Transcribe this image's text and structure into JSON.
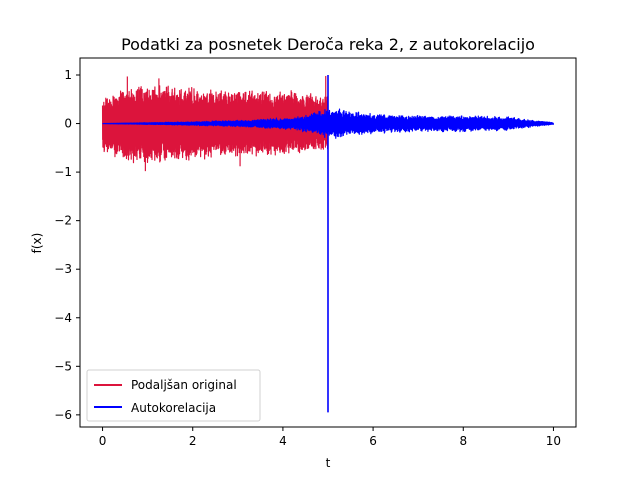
{
  "chart_data": {
    "type": "line",
    "title": "Podatki za posnetek Deroča reka 2, z autokorelacijo",
    "xlabel": "t",
    "ylabel": "f(x)",
    "xlim": [
      -0.5,
      10.5
    ],
    "ylim": [
      -6.25,
      1.35
    ],
    "xticks": [
      0,
      2,
      4,
      6,
      8,
      10
    ],
    "xtick_labels": [
      "0",
      "2",
      "4",
      "6",
      "8",
      "10"
    ],
    "yticks": [
      1,
      0,
      -1,
      -2,
      -3,
      -4,
      -5,
      -6
    ],
    "ytick_labels": [
      "1",
      "0",
      "−1",
      "−2",
      "−3",
      "−4",
      "−5",
      "−6"
    ],
    "grid": false,
    "legend_position": "lower-left",
    "series": [
      {
        "name": "Podaljšan original",
        "color": "#dc143c",
        "description_x_range": [
          0,
          5
        ],
        "envelope": {
          "x": [
            0,
            0.5,
            1,
            1.5,
            2,
            2.5,
            3,
            3.5,
            4,
            4.5,
            5
          ],
          "upper": [
            0.5,
            0.75,
            0.8,
            0.78,
            0.75,
            0.72,
            0.75,
            0.72,
            0.7,
            0.68,
            0.6
          ],
          "lower": [
            -0.6,
            -0.8,
            -0.85,
            -0.8,
            -0.78,
            -0.72,
            -0.72,
            -0.7,
            -0.68,
            -0.62,
            -0.55
          ]
        },
        "peaks": {
          "max": 0.97,
          "min": -0.98
        }
      },
      {
        "name": "Autokorelacija",
        "color": "#0000ff",
        "description_x_range": [
          0,
          10
        ],
        "envelope": {
          "x": [
            0,
            1,
            2,
            3,
            4,
            4.5,
            4.9,
            5.1,
            5.5,
            6,
            7,
            8,
            9,
            9.5,
            10
          ],
          "upper": [
            0.0,
            0.02,
            0.04,
            0.07,
            0.12,
            0.18,
            0.3,
            0.35,
            0.28,
            0.22,
            0.18,
            0.18,
            0.15,
            0.08,
            0.02
          ],
          "lower": [
            0.0,
            -0.02,
            -0.04,
            -0.07,
            -0.12,
            -0.18,
            -0.3,
            -0.35,
            -0.28,
            -0.22,
            -0.18,
            -0.18,
            -0.15,
            -0.08,
            -0.02
          ]
        },
        "spike": {
          "x": 5,
          "max": 1.0,
          "min": -5.95
        }
      }
    ]
  }
}
